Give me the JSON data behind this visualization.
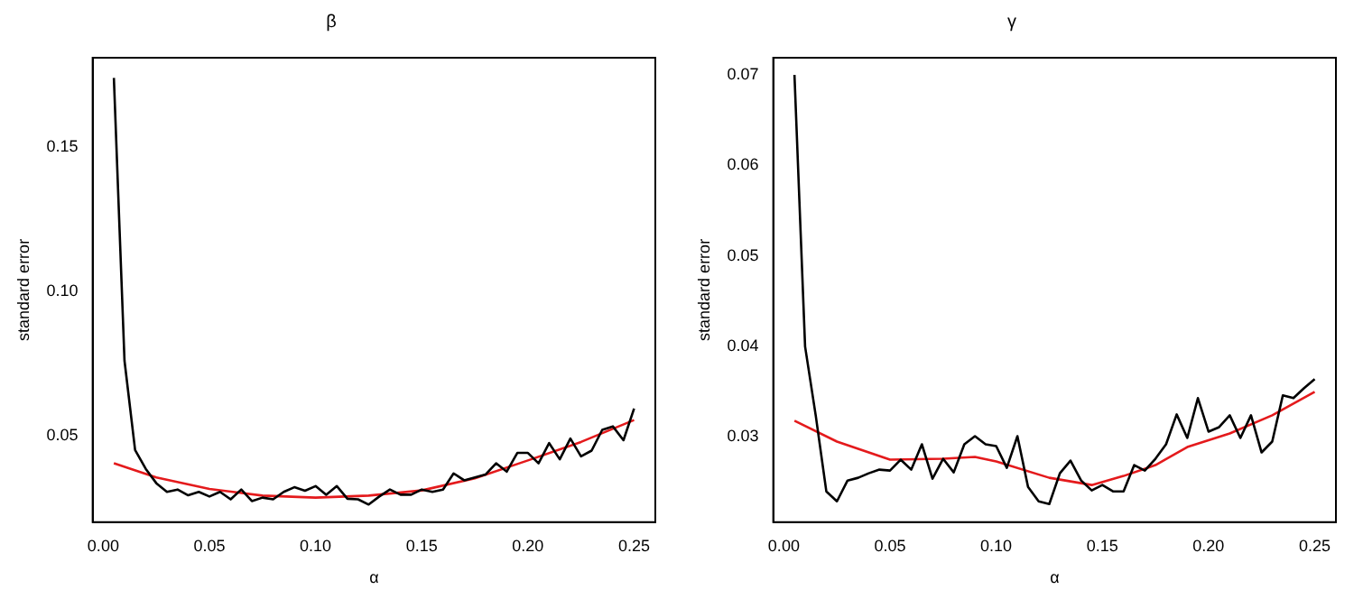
{
  "chart_data": [
    {
      "type": "line",
      "title": "β",
      "xlabel": "α",
      "ylabel": "standard error",
      "xlim": [
        -0.005,
        0.26
      ],
      "ylim": [
        0.02,
        0.181
      ],
      "xticks": [
        {
          "value": 0,
          "label": "0.00"
        },
        0.05,
        {
          "value": 0.1,
          "label": "0.10"
        },
        0.15,
        {
          "value": 0.2,
          "label": "0.20"
        },
        0.25
      ],
      "yticks": [
        0.05,
        {
          "value": 0.1,
          "label": "0.10"
        },
        0.15
      ],
      "grid": false,
      "legend": false,
      "marker": "none",
      "line_style": "solid",
      "series": [
        {
          "color": "#000000",
          "x": [
            0.005,
            0.01,
            0.015,
            0.02,
            0.025,
            0.03,
            0.035,
            0.04,
            0.045,
            0.05,
            0.055,
            0.06,
            0.065,
            0.07,
            0.075,
            0.08,
            0.085,
            0.09,
            0.095,
            0.1,
            0.105,
            0.11,
            0.115,
            0.12,
            0.125,
            0.13,
            0.135,
            0.14,
            0.145,
            0.15,
            0.155,
            0.16,
            0.165,
            0.17,
            0.175,
            0.18,
            0.185,
            0.19,
            0.195,
            0.2,
            0.205,
            0.21,
            0.215,
            0.22,
            0.225,
            0.23,
            0.235,
            0.24,
            0.245,
            0.25
          ],
          "values": [
            0.174,
            0.076,
            0.045,
            0.0385,
            0.0335,
            0.0305,
            0.0313,
            0.0293,
            0.0305,
            0.0289,
            0.0305,
            0.0279,
            0.0313,
            0.0273,
            0.0285,
            0.0279,
            0.0305,
            0.0321,
            0.0309,
            0.0325,
            0.0295,
            0.0325,
            0.0281,
            0.0279,
            0.0261,
            0.0289,
            0.0313,
            0.0295,
            0.0295,
            0.0313,
            0.0305,
            0.0313,
            0.0369,
            0.0345,
            0.0355,
            0.0365,
            0.0404,
            0.0375,
            0.044,
            0.044,
            0.0404,
            0.0474,
            0.0418,
            0.049,
            0.0428,
            0.0448,
            0.052,
            0.0532,
            0.0484,
            0.0594
          ]
        },
        {
          "color": "#e41a1c",
          "x": [
            0.005,
            0.025,
            0.05,
            0.075,
            0.1,
            0.125,
            0.15,
            0.175,
            0.2,
            0.225,
            0.25
          ],
          "values": [
            0.0404,
            0.0355,
            0.0315,
            0.0292,
            0.0285,
            0.0292,
            0.031,
            0.0352,
            0.0414,
            0.0478,
            0.0554
          ]
        }
      ]
    },
    {
      "type": "line",
      "title": "γ",
      "xlabel": "α",
      "ylabel": "standard error",
      "xlim": [
        -0.005,
        0.26
      ],
      "ylim": [
        0.0206,
        0.0719
      ],
      "xticks": [
        {
          "value": 0,
          "label": "0.00"
        },
        0.05,
        {
          "value": 0.1,
          "label": "0.10"
        },
        0.15,
        {
          "value": 0.2,
          "label": "0.20"
        },
        0.25
      ],
      "yticks": [
        0.03,
        0.04,
        0.05,
        0.06,
        0.07
      ],
      "grid": false,
      "legend": false,
      "marker": "none",
      "line_style": "solid",
      "series": [
        {
          "color": "#000000",
          "x": [
            0.005,
            0.01,
            0.015,
            0.02,
            0.025,
            0.03,
            0.035,
            0.04,
            0.045,
            0.05,
            0.055,
            0.06,
            0.065,
            0.07,
            0.075,
            0.08,
            0.085,
            0.09,
            0.095,
            0.1,
            0.105,
            0.11,
            0.115,
            0.12,
            0.125,
            0.13,
            0.135,
            0.14,
            0.145,
            0.15,
            0.155,
            0.16,
            0.165,
            0.17,
            0.175,
            0.18,
            0.185,
            0.19,
            0.195,
            0.2,
            0.205,
            0.21,
            0.215,
            0.22,
            0.225,
            0.23,
            0.235,
            0.24,
            0.245,
            0.25
          ],
          "values": [
            0.07,
            0.04,
            0.0324,
            0.024,
            0.0229,
            0.0252,
            0.0255,
            0.026,
            0.0264,
            0.0263,
            0.0275,
            0.0264,
            0.0292,
            0.0254,
            0.0276,
            0.0261,
            0.0292,
            0.0301,
            0.0292,
            0.029,
            0.0266,
            0.0301,
            0.0245,
            0.0229,
            0.0226,
            0.026,
            0.0274,
            0.0252,
            0.0241,
            0.0247,
            0.024,
            0.024,
            0.0269,
            0.0263,
            0.0276,
            0.0292,
            0.0325,
            0.0299,
            0.0343,
            0.0306,
            0.0311,
            0.0324,
            0.0299,
            0.0324,
            0.0283,
            0.0295,
            0.0346,
            0.0343,
            0.0354,
            0.0364
          ]
        },
        {
          "color": "#e41a1c",
          "x": [
            0.005,
            0.025,
            0.05,
            0.075,
            0.09,
            0.1,
            0.125,
            0.145,
            0.16,
            0.175,
            0.19,
            0.21,
            0.23,
            0.25
          ],
          "values": [
            0.0318,
            0.0295,
            0.0275,
            0.0276,
            0.0278,
            0.0273,
            0.0255,
            0.0247,
            0.0257,
            0.0269,
            0.0289,
            0.0304,
            0.0324,
            0.035
          ]
        }
      ]
    }
  ]
}
